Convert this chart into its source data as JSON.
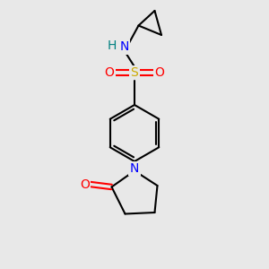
{
  "background_color": "#e8e8e8",
  "atom_colors": {
    "N": "#0000ff",
    "O": "#ff0000",
    "S": "#ccaa00",
    "H": "#008080",
    "C": "#000000"
  },
  "bond_color": "#000000",
  "figsize": [
    3.0,
    3.0
  ],
  "dpi": 100,
  "bond_lw": 1.5,
  "font_size": 10
}
